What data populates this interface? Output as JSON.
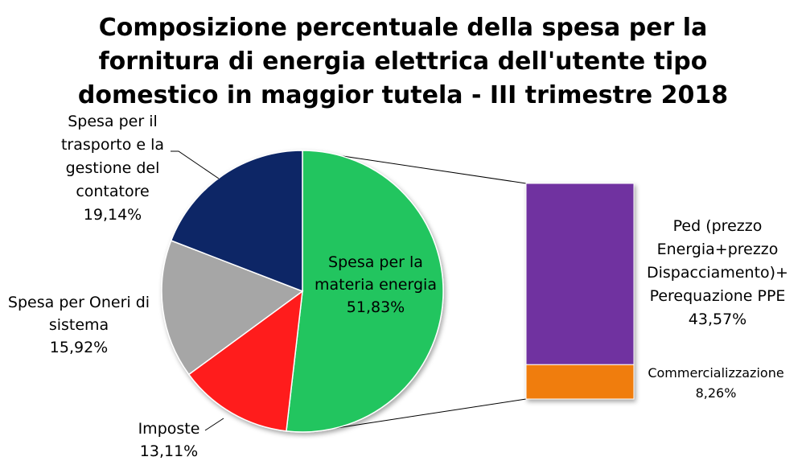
{
  "chart_data": {
    "type": "pie",
    "title": "Composizione percentuale della spesa per la fornitura di energia elettrica dell'utente tipo domestico in maggior tutela - III trimestre 2018",
    "title_lines": [
      "Composizione percentuale della spesa per la",
      "fornitura di energia elettrica dell'utente tipo",
      "domestico in maggior tutela - III trimestre 2018"
    ],
    "pie": {
      "slices": [
        {
          "label_lines": [
            "Spesa per la",
            "materia energia"
          ],
          "value": 51.83,
          "value_label": "51,83%",
          "color": "#22c55e"
        },
        {
          "label_lines": [
            "Imposte"
          ],
          "value": 13.11,
          "value_label": "13,11%",
          "color": "#ff1a1a"
        },
        {
          "label_lines": [
            "Spesa per Oneri di",
            "sistema"
          ],
          "value": 15.92,
          "value_label": "15,92%",
          "color": "#a6a6a6"
        },
        {
          "label_lines": [
            "Spesa per il",
            "trasporto e la",
            "gestione del",
            "contatore"
          ],
          "value": 19.14,
          "value_label": "19,14%",
          "color": "#0b2566"
        }
      ]
    },
    "breakdown_bar": {
      "of_slice": "Spesa per la materia energia",
      "segments": [
        {
          "label_lines": [
            "Ped (prezzo",
            "Energia+prezzo",
            "Dispacciamento)+",
            "Perequazione PPE"
          ],
          "value": 43.57,
          "value_label": "43,57%",
          "color": "#7030a0"
        },
        {
          "label_lines": [
            "Commercializzazione"
          ],
          "value": 8.26,
          "value_label": "8,26%",
          "color": "#f07d0d"
        }
      ]
    }
  }
}
